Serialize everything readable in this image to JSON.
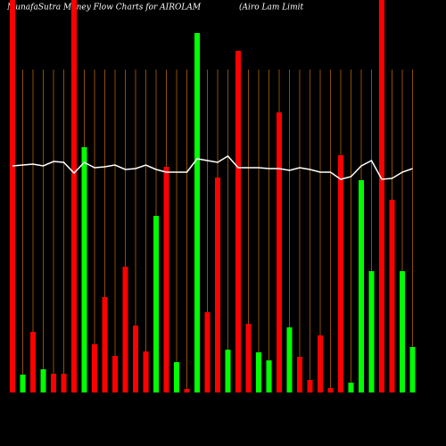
{
  "chart_data": {
    "type": "bar",
    "title": "MunafaSutra  Money Flow  Charts for AIROLAM",
    "subtitle": "(Airo  Lam Limit",
    "categories": [
      null,
      null,
      null,
      null,
      null,
      null,
      null,
      null,
      null,
      null,
      null,
      null,
      null,
      null,
      null,
      null,
      null,
      null,
      null,
      null,
      null,
      null,
      null,
      null,
      null,
      null,
      null,
      null,
      null,
      null,
      null,
      null,
      null,
      null,
      null,
      null,
      null,
      null,
      null,
      null
    ],
    "values": [
      440,
      20,
      68,
      26,
      21,
      21,
      440,
      275,
      54,
      107,
      41,
      141,
      75,
      46,
      198,
      253,
      34,
      4,
      403,
      90,
      241,
      48,
      383,
      77,
      45,
      36,
      314,
      73,
      40,
      14,
      64,
      5,
      266,
      11,
      238,
      136,
      440,
      216,
      136,
      51
    ],
    "colors": [
      "#ff0000",
      "#00ff00",
      "#ff0000",
      "#00ff00",
      "#ff0000",
      "#ff0000",
      "#ff0000",
      "#00ff00",
      "#ff0000",
      "#ff0000",
      "#ff0000",
      "#ff0000",
      "#ff0000",
      "#ff0000",
      "#00ff00",
      "#ff0000",
      "#00ff00",
      "#ff0000",
      "#00ff00",
      "#ff0000",
      "#ff0000",
      "#00ff00",
      "#ff0000",
      "#ff0000",
      "#00ff00",
      "#00ff00",
      "#ff0000",
      "#00ff00",
      "#ff0000",
      "#ff0000",
      "#ff0000",
      "#ff0000",
      "#ff0000",
      "#00ff00",
      "#00ff00",
      "#00ff00",
      "#ff0000",
      "#ff0000",
      "#00ff00",
      "#00ff00"
    ],
    "line": {
      "color": "#ffffff",
      "values": [
        254,
        255,
        256,
        254,
        259,
        258,
        246,
        258,
        252,
        253,
        255,
        250,
        251,
        255,
        250,
        247,
        247,
        247,
        262,
        260,
        258,
        265,
        252,
        252,
        252,
        251,
        251,
        249,
        252,
        250,
        247,
        247,
        239,
        242,
        254,
        260,
        239,
        240,
        247,
        251
      ]
    },
    "ylim": [
      0,
      440
    ],
    "grid_color": "#b36200"
  }
}
